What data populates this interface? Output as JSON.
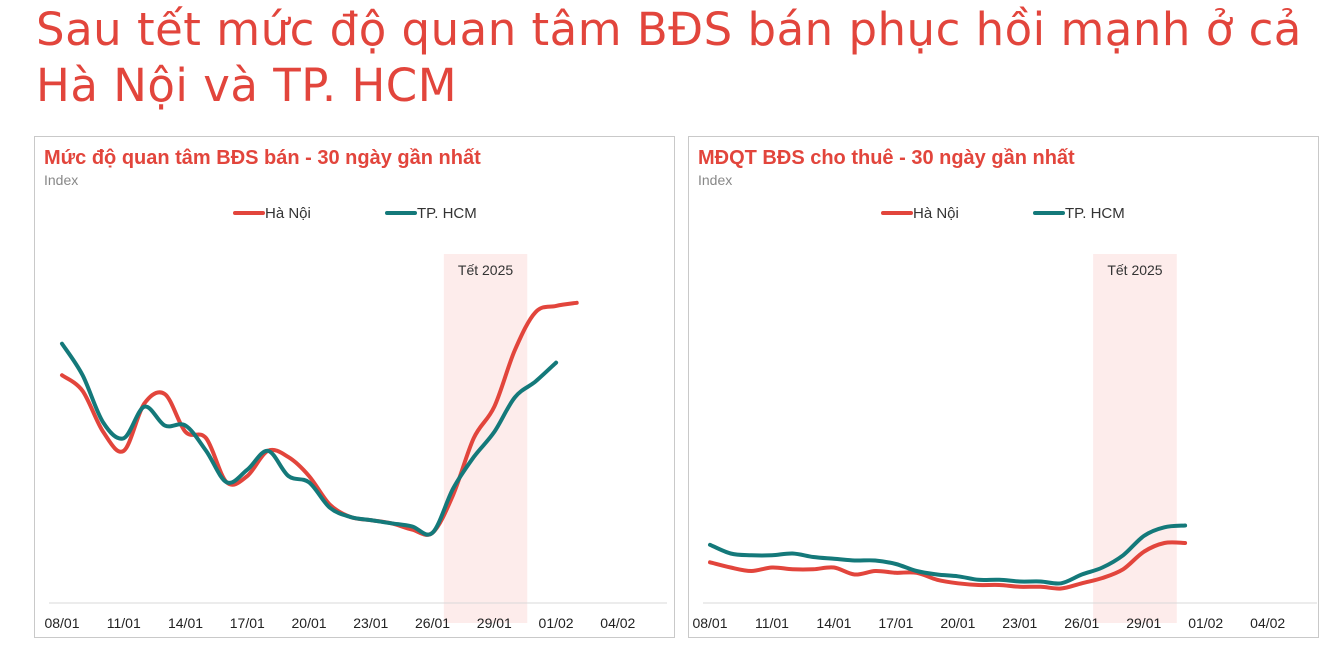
{
  "headline": "Sau tết mức độ quan tâm BĐS bán phục hồi mạnh ở cả Hà Nội và TP. HCM",
  "colors": {
    "ha_noi": "#e2453c",
    "hcm": "#14797a",
    "band": "#fdeceb",
    "title": "#e2453c"
  },
  "chart_data": [
    {
      "type": "line",
      "title": "Mức độ quan tâm BĐS bán - 30 ngày gần nhất",
      "ylabel": "Index",
      "legend": "top-center",
      "grid": false,
      "x": [
        "08/01",
        "09/01",
        "10/01",
        "11/01",
        "12/01",
        "13/01",
        "14/01",
        "15/01",
        "16/01",
        "17/01",
        "18/01",
        "19/01",
        "20/01",
        "21/01",
        "22/01",
        "23/01",
        "24/01",
        "25/01",
        "26/01",
        "27/01",
        "28/01",
        "29/01",
        "30/01",
        "31/01",
        "01/02",
        "02/02",
        "03/02",
        "04/02",
        "05/02",
        "06/02"
      ],
      "x_ticks": [
        "08/01",
        "11/01",
        "14/01",
        "17/01",
        "20/01",
        "23/01",
        "26/01",
        "29/01",
        "01/02",
        "04/02"
      ],
      "ylim": [
        0,
        100
      ],
      "band": {
        "label": "Tết 2025",
        "from": "27/01",
        "to": "31/01"
      },
      "series": [
        {
          "name": "Hà Nội",
          "color": "#e2453c",
          "values": [
            72,
            67,
            54,
            48,
            63,
            66,
            54,
            52,
            38,
            40,
            48,
            46,
            40,
            31,
            27,
            26,
            25,
            23,
            22,
            34,
            52,
            62,
            80,
            92,
            94,
            95,
            null,
            null,
            null,
            null
          ]
        },
        {
          "name": "TP. HCM",
          "color": "#14797a",
          "values": [
            82,
            72,
            57,
            52,
            62,
            56,
            56,
            48,
            38,
            42,
            48,
            40,
            38,
            30,
            27,
            26,
            25,
            24,
            22,
            36,
            46,
            54,
            65,
            70,
            76,
            null,
            null,
            null,
            null,
            null
          ]
        }
      ]
    },
    {
      "type": "line",
      "title": "MĐQT BĐS cho thuê - 30 ngày gần nhất",
      "ylabel": "Index",
      "legend": "top-center",
      "grid": false,
      "x": [
        "08/01",
        "09/01",
        "10/01",
        "11/01",
        "12/01",
        "13/01",
        "14/01",
        "15/01",
        "16/01",
        "17/01",
        "18/01",
        "19/01",
        "20/01",
        "21/01",
        "22/01",
        "23/01",
        "24/01",
        "25/01",
        "26/01",
        "27/01",
        "28/01",
        "29/01",
        "30/01",
        "31/01",
        "01/02",
        "02/02",
        "03/02",
        "04/02",
        "05/02",
        "06/02"
      ],
      "x_ticks": [
        "08/01",
        "11/01",
        "14/01",
        "17/01",
        "20/01",
        "23/01",
        "26/01",
        "29/01",
        "01/02",
        "04/02"
      ],
      "ylim": [
        0,
        100
      ],
      "band": {
        "label": "Tết 2025",
        "from": "27/01",
        "to": "31/01"
      },
      "series": [
        {
          "name": "Hà Nội",
          "color": "#e2453c",
          "values": [
            17,
            14,
            12,
            14,
            13,
            13,
            14,
            10,
            12,
            11,
            11,
            7,
            5,
            4,
            4,
            3,
            3,
            2,
            5,
            8,
            13,
            23,
            28,
            28,
            null,
            null,
            null,
            null,
            null,
            null
          ]
        },
        {
          "name": "TP. HCM",
          "color": "#14797a",
          "values": [
            27,
            22,
            21,
            21,
            22,
            20,
            19,
            18,
            18,
            16,
            12,
            10,
            9,
            7,
            7,
            6,
            6,
            5,
            10,
            14,
            21,
            32,
            37,
            38,
            null,
            null,
            null,
            null,
            null,
            null
          ]
        }
      ]
    }
  ]
}
